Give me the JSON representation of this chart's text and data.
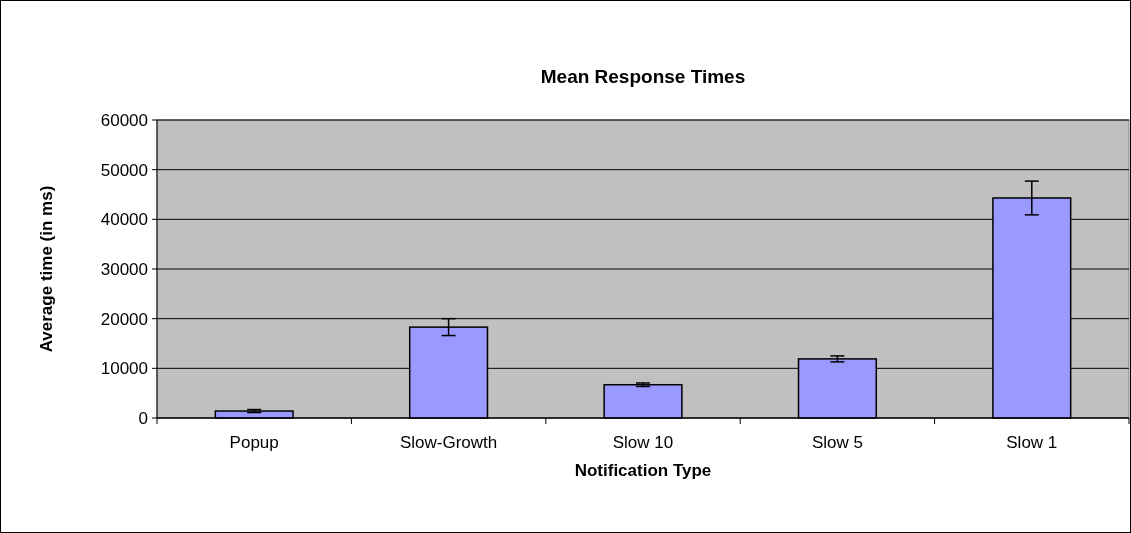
{
  "chart_data": {
    "type": "bar",
    "title": "Mean Response Times",
    "xlabel": "Notification Type",
    "ylabel": "Average time (in ms)",
    "categories": [
      "Popup",
      "Slow-Growth",
      "Slow 10",
      "Slow 5",
      "Slow 1"
    ],
    "values": [
      1400,
      18300,
      6700,
      11900,
      44300
    ],
    "errors": [
      300,
      1700,
      350,
      600,
      3400
    ],
    "color": "#9999ff",
    "ylim": [
      0,
      60000
    ],
    "yticks": [
      0,
      10000,
      20000,
      30000,
      40000,
      50000,
      60000
    ],
    "grid": "y"
  }
}
